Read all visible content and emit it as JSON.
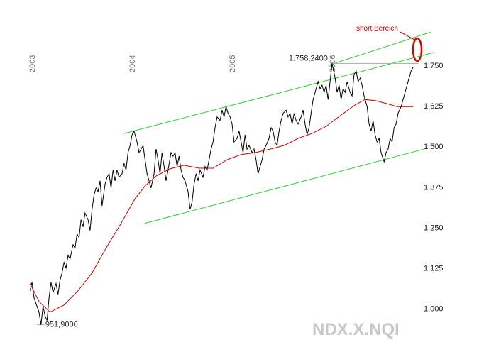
{
  "chart_data": {
    "type": "line",
    "watermark": "NDX.X.NQI",
    "xlim": [
      2002.85,
      2007.15
    ],
    "xticks": [
      2003,
      2004,
      2005,
      2006
    ],
    "ylim": [
      925,
      1910
    ],
    "yticks": [
      {
        "value": 1000,
        "label": "1.000"
      },
      {
        "value": 1125,
        "label": "1.125"
      },
      {
        "value": 1250,
        "label": "1.250"
      },
      {
        "value": 1375,
        "label": "1.375"
      },
      {
        "value": 1500,
        "label": "1.500"
      },
      {
        "value": 1625,
        "label": "1.625"
      },
      {
        "value": 1750,
        "label": "1.750"
      }
    ],
    "series": [
      {
        "color": "#000000",
        "x": [
          2002.98,
          2003.0,
          2003.02,
          2003.04,
          2003.07,
          2003.09,
          2003.11,
          2003.13,
          2003.15,
          2003.17,
          2003.19,
          2003.21,
          2003.24,
          2003.26,
          2003.28,
          2003.3,
          2003.32,
          2003.34,
          2003.36,
          2003.38,
          2003.41,
          2003.43,
          2003.45,
          2003.47,
          2003.49,
          2003.51,
          2003.53,
          2003.56,
          2003.58,
          2003.6,
          2003.62,
          2003.64,
          2003.66,
          2003.68,
          2003.7,
          2003.73,
          2003.75,
          2003.77,
          2003.79,
          2003.81,
          2003.83,
          2003.85,
          2003.87,
          2003.9,
          2003.92,
          2003.94,
          2003.96,
          2003.98,
          2004.0,
          2004.02,
          2004.05,
          2004.07,
          2004.09,
          2004.11,
          2004.13,
          2004.15,
          2004.17,
          2004.19,
          2004.22,
          2004.24,
          2004.26,
          2004.28,
          2004.3,
          2004.32,
          2004.34,
          2004.36,
          2004.39,
          2004.41,
          2004.43,
          2004.45,
          2004.47,
          2004.49,
          2004.51,
          2004.53,
          2004.56,
          2004.58,
          2004.6,
          2004.62,
          2004.64,
          2004.66,
          2004.68,
          2004.71,
          2004.73,
          2004.75,
          2004.77,
          2004.79,
          2004.81,
          2004.83,
          2004.85,
          2004.88,
          2004.9,
          2004.92,
          2004.94,
          2004.96,
          2004.98,
          2005.0,
          2005.02,
          2005.05,
          2005.07,
          2005.09,
          2005.11,
          2005.13,
          2005.15,
          2005.17,
          2005.2,
          2005.22,
          2005.24,
          2005.26,
          2005.28,
          2005.3,
          2005.32,
          2005.34,
          2005.37,
          2005.39,
          2005.41,
          2005.43,
          2005.45,
          2005.47,
          2005.49,
          2005.51,
          2005.54,
          2005.56,
          2005.58,
          2005.6,
          2005.62,
          2005.64,
          2005.66,
          2005.69,
          2005.71,
          2005.73,
          2005.75,
          2005.77,
          2005.79,
          2005.81,
          2005.83,
          2005.86,
          2005.88,
          2005.9,
          2005.92,
          2005.94,
          2005.96,
          2005.98,
          2006.0,
          2006.03,
          2006.05,
          2006.07,
          2006.09,
          2006.11,
          2006.13,
          2006.15,
          2006.18,
          2006.2,
          2006.22,
          2006.24,
          2006.26,
          2006.28,
          2006.3,
          2006.32,
          2006.35,
          2006.37,
          2006.39,
          2006.41,
          2006.43,
          2006.45,
          2006.47,
          2006.49,
          2006.52,
          2006.54,
          2006.56,
          2006.58,
          2006.6,
          2006.62,
          2006.64,
          2006.66,
          2006.69,
          2006.71,
          2006.73,
          2006.75,
          2006.77,
          2006.79,
          2006.81
        ],
        "values": [
          1057,
          1083,
          1035,
          1017,
          991,
          951.9,
          1009,
          980,
          965,
          1035,
          1083,
          1052,
          1079,
          1046,
          1090,
          1112,
          1144,
          1127,
          1166,
          1155,
          1199,
          1188,
          1232,
          1221,
          1276,
          1254,
          1297,
          1276,
          1243,
          1308,
          1352,
          1374,
          1363,
          1396,
          1319,
          1385,
          1407,
          1418,
          1374,
          1429,
          1396,
          1429,
          1407,
          1418,
          1450,
          1429,
          1483,
          1505,
          1538,
          1549,
          1516,
          1483,
          1494,
          1505,
          1461,
          1418,
          1396,
          1374,
          1418,
          1494,
          1461,
          1418,
          1483,
          1440,
          1396,
          1429,
          1483,
          1472,
          1483,
          1440,
          1472,
          1429,
          1407,
          1396,
          1363,
          1308,
          1330,
          1385,
          1418,
          1396,
          1429,
          1407,
          1440,
          1429,
          1461,
          1494,
          1516,
          1560,
          1593,
          1582,
          1614,
          1593,
          1625,
          1604,
          1593,
          1571,
          1516,
          1527,
          1549,
          1516,
          1483,
          1538,
          1494,
          1505,
          1483,
          1494,
          1461,
          1418,
          1440,
          1461,
          1494,
          1505,
          1527,
          1560,
          1549,
          1516,
          1505,
          1549,
          1582,
          1604,
          1614,
          1593,
          1604,
          1571,
          1604,
          1582,
          1571,
          1593,
          1614,
          1571,
          1538,
          1560,
          1604,
          1647,
          1669,
          1702,
          1680,
          1691,
          1669,
          1691,
          1647,
          1702,
          1758.24,
          1713,
          1669,
          1691,
          1647,
          1680,
          1669,
          1702,
          1669,
          1658,
          1724,
          1735,
          1702,
          1713,
          1691,
          1658,
          1625,
          1571,
          1549,
          1582,
          1538,
          1516,
          1527,
          1483,
          1455,
          1483,
          1494,
          1527,
          1516,
          1560,
          1571,
          1604,
          1625,
          1647,
          1669,
          1691,
          1713,
          1735,
          1746
        ]
      },
      {
        "color": "#cc0000",
        "x": [
          2002.98,
          2003.07,
          2003.18,
          2003.32,
          2003.46,
          2003.6,
          2003.74,
          2003.89,
          2004.03,
          2004.13,
          2004.24,
          2004.38,
          2004.52,
          2004.67,
          2004.81,
          2004.95,
          2005.09,
          2005.23,
          2005.38,
          2005.52,
          2005.66,
          2005.8,
          2005.94,
          2006.09,
          2006.23,
          2006.33,
          2006.44,
          2006.55,
          2006.65,
          2006.72,
          2006.81
        ],
        "values": [
          1079,
          1024,
          991,
          1013,
          1057,
          1112,
          1188,
          1265,
          1341,
          1380,
          1411,
          1433,
          1444,
          1435,
          1435,
          1461,
          1477,
          1483,
          1494,
          1505,
          1527,
          1542,
          1564,
          1599,
          1630,
          1647,
          1643,
          1634,
          1625,
          1625,
          1625
        ]
      }
    ],
    "trendlines": [
      {
        "color": "#33cc33",
        "x": [
          2003.92,
          2007.02
        ],
        "values": [
          1542,
          1792
        ]
      },
      {
        "color": "#33cc33",
        "x": [
          2005.96,
          2006.99
        ],
        "values": [
          1752,
          1855
        ]
      },
      {
        "color": "#33cc33",
        "x": [
          2004.13,
          2006.92
        ],
        "values": [
          1265,
          1494
        ]
      }
    ],
    "annotations": [
      {
        "text": "1.758,2400",
        "x": 2006.0,
        "y": 1758.24
      },
      {
        "text": "951,9000",
        "x": 2003.09,
        "y": 951.9
      }
    ],
    "callout": "short Bereich"
  }
}
